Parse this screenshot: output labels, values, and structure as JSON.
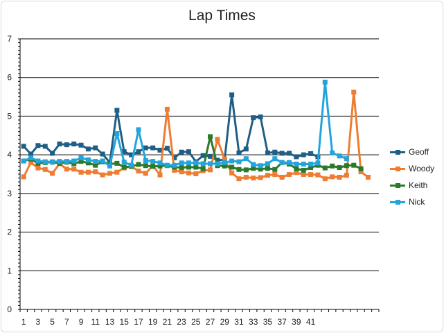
{
  "chart_data": {
    "type": "line",
    "title": "Lap Times",
    "xlabel": "",
    "ylabel": "",
    "ylim": [
      0,
      7
    ],
    "yticks": [
      0,
      1,
      2,
      3,
      4,
      5,
      6,
      7
    ],
    "x": [
      1,
      2,
      3,
      4,
      5,
      6,
      7,
      8,
      9,
      10,
      11,
      12,
      13,
      14,
      15,
      16,
      17,
      18,
      19,
      20,
      21,
      22,
      23,
      24,
      25,
      26,
      27,
      28,
      29,
      30,
      31,
      32,
      33,
      34,
      35,
      36,
      37,
      38,
      39,
      40,
      41,
      42,
      43,
      44,
      45,
      46,
      47,
      48,
      49,
      50
    ],
    "xtick_labels": [
      "1",
      "3",
      "5",
      "7",
      "9",
      "11",
      "13",
      "15",
      "17",
      "19",
      "21",
      "23",
      "25",
      "27",
      "29",
      "31",
      "33",
      "35",
      "37",
      "39",
      "41"
    ],
    "grid": true,
    "legend_position": "right",
    "series": [
      {
        "name": "Geoff",
        "color": "#1f5f86",
        "values": [
          4.22,
          4.02,
          4.24,
          4.22,
          4.04,
          4.28,
          4.26,
          4.28,
          4.25,
          4.15,
          4.18,
          4.02,
          3.8,
          5.15,
          4.08,
          4.0,
          4.08,
          4.18,
          4.18,
          4.12,
          4.17,
          3.92,
          4.07,
          4.08,
          3.82,
          3.98,
          3.96,
          3.86,
          3.87,
          5.55,
          4.05,
          4.15,
          4.96,
          4.98,
          4.05,
          4.07,
          4.04,
          4.04,
          3.95,
          4.0,
          4.03,
          3.95,
          null,
          null,
          null,
          null,
          null,
          null,
          null,
          null
        ]
      },
      {
        "name": "Woody",
        "color": "#ee7d31",
        "values": [
          3.43,
          3.8,
          3.66,
          3.62,
          3.52,
          3.77,
          3.63,
          3.63,
          3.55,
          3.55,
          3.56,
          3.48,
          3.52,
          3.55,
          3.66,
          3.7,
          3.58,
          3.52,
          3.72,
          3.48,
          5.18,
          3.6,
          3.56,
          3.53,
          3.51,
          3.59,
          3.61,
          4.4,
          3.89,
          3.53,
          3.38,
          3.42,
          3.4,
          3.41,
          3.47,
          3.49,
          3.42,
          3.49,
          3.54,
          3.49,
          3.49,
          3.48,
          3.38,
          3.43,
          3.42,
          3.47,
          5.62,
          3.56,
          3.42,
          null
        ]
      },
      {
        "name": "Keith",
        "color": "#2b7a2b",
        "values": [
          3.84,
          3.89,
          3.78,
          3.8,
          3.81,
          3.78,
          3.81,
          3.77,
          3.83,
          3.79,
          3.73,
          3.82,
          3.76,
          3.78,
          3.68,
          3.7,
          3.75,
          3.72,
          3.7,
          3.71,
          3.72,
          3.68,
          3.67,
          3.68,
          3.68,
          3.64,
          4.47,
          3.72,
          3.71,
          3.68,
          3.62,
          3.61,
          3.65,
          3.63,
          3.65,
          3.62,
          3.8,
          3.76,
          3.64,
          3.6,
          3.67,
          3.73,
          3.66,
          3.71,
          3.67,
          3.72,
          3.73,
          3.64,
          null,
          null
        ]
      },
      {
        "name": "Nick",
        "color": "#23a4dc",
        "values": [
          3.84,
          3.92,
          3.84,
          3.82,
          3.82,
          3.83,
          3.83,
          3.84,
          3.92,
          3.87,
          3.83,
          3.84,
          3.71,
          4.55,
          3.81,
          3.73,
          4.65,
          3.85,
          3.83,
          3.79,
          3.73,
          3.73,
          3.79,
          3.79,
          3.79,
          3.77,
          3.77,
          3.77,
          3.8,
          3.84,
          3.82,
          3.9,
          3.75,
          3.72,
          3.77,
          3.9,
          3.8,
          3.8,
          3.76,
          3.76,
          3.76,
          3.79,
          5.88,
          4.05,
          3.97,
          3.9,
          null,
          null,
          null,
          null
        ]
      }
    ]
  }
}
